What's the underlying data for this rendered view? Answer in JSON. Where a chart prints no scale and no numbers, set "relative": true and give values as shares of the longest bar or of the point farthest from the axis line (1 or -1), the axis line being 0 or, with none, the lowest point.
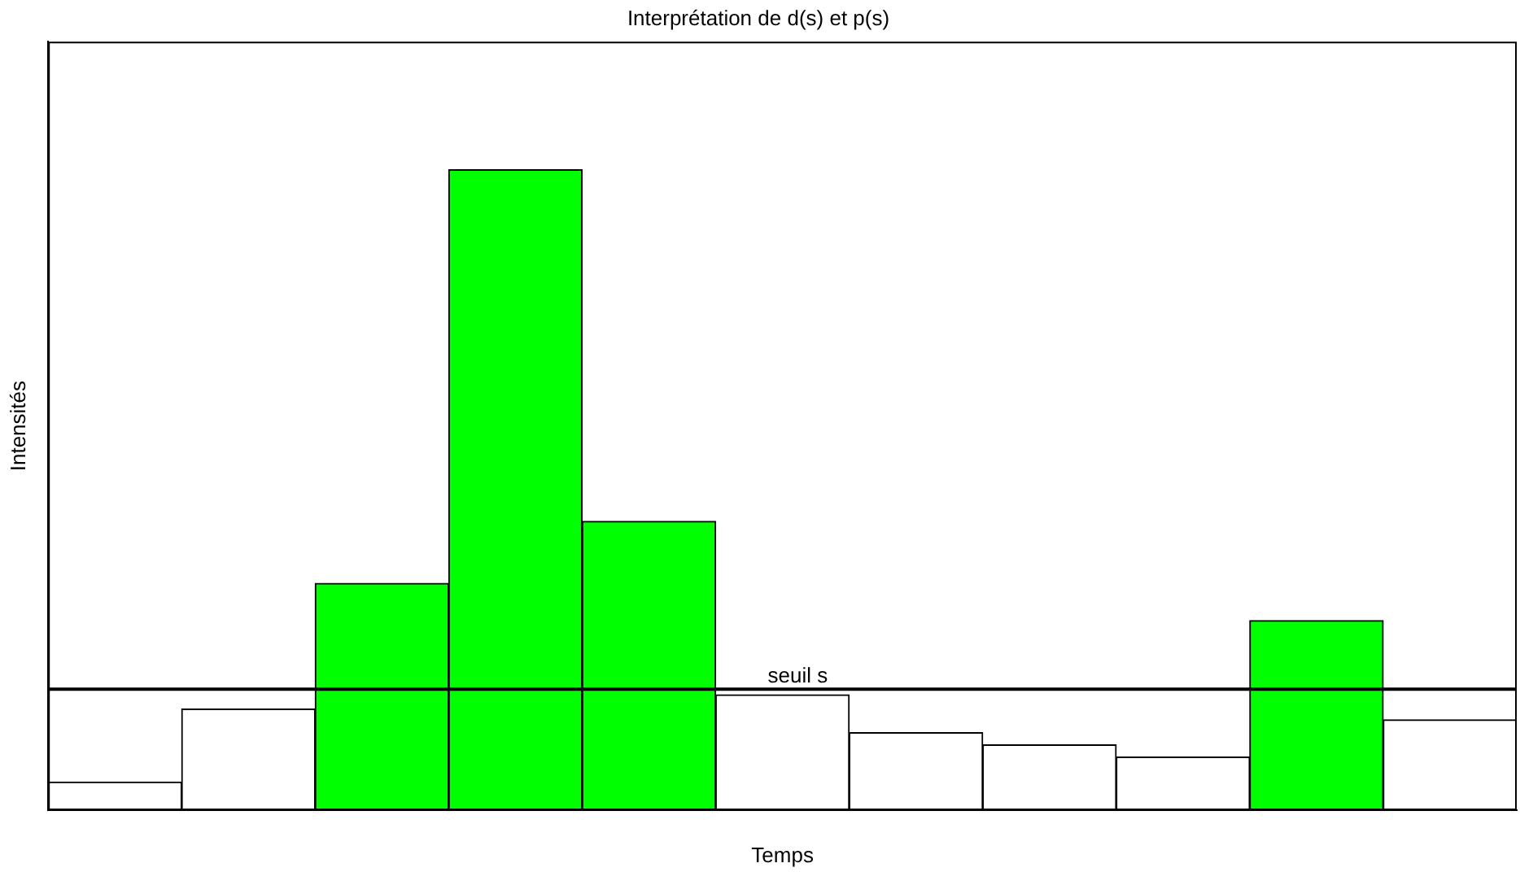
{
  "chart_data": {
    "type": "bar",
    "title": "Interprétation de d(s) et p(s)",
    "xlabel": "Temps",
    "ylabel": "Intensités",
    "relative": true,
    "categories": [
      null,
      null,
      null,
      null,
      null,
      null,
      null,
      null,
      null,
      null,
      null
    ],
    "values": [
      0.044,
      0.158,
      0.354,
      1,
      0.451,
      0.18,
      0.121,
      0.102,
      0.083,
      0.296,
      0.141
    ],
    "colors": [
      "#ffffff",
      "#ffffff",
      "#00ff00",
      "#00ff00",
      "#00ff00",
      "#ffffff",
      "#ffffff",
      "#ffffff",
      "#ffffff",
      "#00ff00",
      "#ffffff"
    ],
    "ref_lines": [
      {
        "axis": "y",
        "value": 0.189,
        "label": "seuil s",
        "color": "#000000"
      }
    ],
    "grid": false,
    "legend": false
  }
}
